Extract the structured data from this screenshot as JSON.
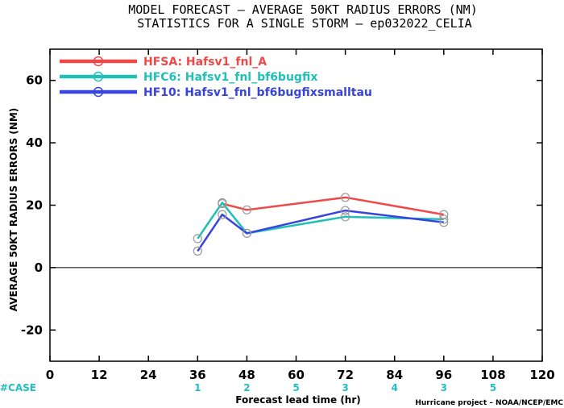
{
  "chart_data": {
    "type": "line",
    "title_line1": "MODEL FORECAST – AVERAGE 50KT RADIUS ERRORS (NM)",
    "title_line2": "STATISTICS FOR A SINGLE STORM – ep032022_CELIA",
    "xlabel": "Forecast lead time (hr)",
    "ylabel": "AVERAGE 50KT RADIUS ERRORS (NM)",
    "xlim": [
      0,
      120
    ],
    "ylim": [
      -30,
      70
    ],
    "x_ticks": [
      0,
      12,
      24,
      36,
      48,
      60,
      72,
      84,
      96,
      108,
      120
    ],
    "y_ticks": [
      -20,
      0,
      20,
      40,
      60
    ],
    "zero_line": true,
    "case_label": "#CASE",
    "case_counts": [
      {
        "x": 36,
        "n": "1"
      },
      {
        "x": 48,
        "n": "2"
      },
      {
        "x": 60,
        "n": "5"
      },
      {
        "x": 72,
        "n": "3"
      },
      {
        "x": 84,
        "n": "4"
      },
      {
        "x": 96,
        "n": "3"
      },
      {
        "x": 108,
        "n": "5"
      }
    ],
    "credit": "Hurricane project – NOAA/NCEP/EMC",
    "legend_position": "top-left",
    "series": [
      {
        "name": "HFSA:",
        "desc": "Hafsv1_fnl_A",
        "color": "#f04848",
        "x": [
          36,
          42,
          48,
          72,
          96
        ],
        "values": [
          null,
          20.5,
          18.5,
          22.5,
          17.0
        ]
      },
      {
        "name": "HFC6:",
        "desc": "Hafsv1_fnl_bf6bugfix",
        "color": "#20c0b8",
        "x": [
          36,
          42,
          48,
          72,
          96
        ],
        "values": [
          9.3,
          20.8,
          11.0,
          16.3,
          15.5
        ]
      },
      {
        "name": "HF10:",
        "desc": "Hafsv1_fnl_bf6bugfixsmalltau",
        "color": "#3844e0",
        "x": [
          36,
          42,
          48,
          72,
          96
        ],
        "values": [
          5.3,
          17.0,
          11.0,
          18.3,
          14.5
        ]
      }
    ]
  }
}
